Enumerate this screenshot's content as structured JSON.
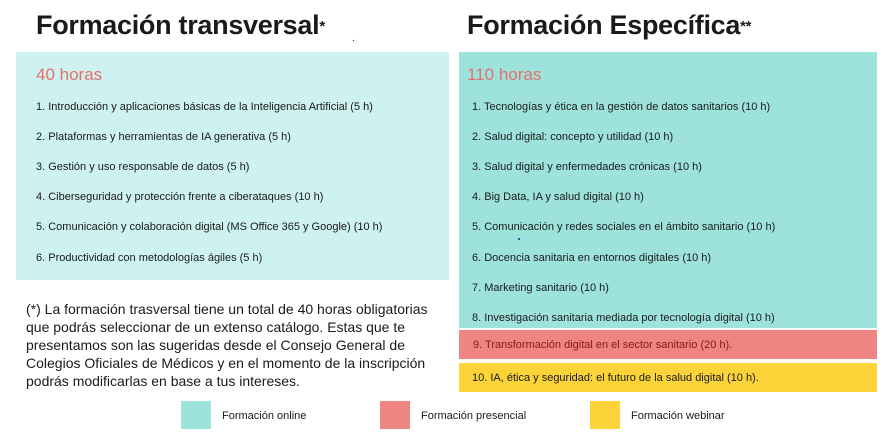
{
  "left": {
    "title": "Formación transversal",
    "title_mark": "*",
    "hours": "40 horas",
    "items": [
      "1. Introducción y aplicaciones básicas de la Inteligencia Artificial (5 h)",
      "2. Plataformas y herramientas de IA generativa (5 h)",
      "3. Gestión y uso responsable de datos (5 h)",
      "4. Ciberseguridad y protección frente a ciberataques (10 h)",
      "5. Comunicación y colaboración digital (MS Office 365 y Google) (10 h)",
      "6. Productividad con metodologías ágiles (5 h)"
    ],
    "note": "(*) La formación trasversal tiene un total de 40 horas obligatorias que podrás seleccionar de un extenso catálogo. Estas que te presentamos son las sugeridas desde el Consejo General de Colegios Oficiales de Médicos y en el momento de la inscripción podrás modificarlas en base a tus intereses."
  },
  "right": {
    "title": "Formación Específica",
    "title_mark": "**",
    "hours": "110 horas",
    "items": [
      "1.   Tecnologías y ética en la gestión de datos sanitarios (10 h)",
      "2.   Salud digital: concepto y utilidad (10 h)",
      "3.   Salud digital y enfermedades crónicas (10 h)",
      "4.   Big Data, IA y salud digital (10 h)",
      "5.   Comunicación y redes sociales en el ámbito sanitario (10 h)",
      "6.   Docencia sanitaria en entornos digitales (10 h)",
      "7.   Marketing sanitario (10 h)",
      "8.   Investigación sanitaria mediada por tecnología digital (10 h)"
    ],
    "item_9": "9.   Transformación digital en el sector sanitario (20 h).",
    "item_10": "10. IA, ética y seguridad: el futuro de la salud digital (10 h)."
  },
  "legend": {
    "online": "Formación online",
    "presencial": "Formación presencial",
    "webinar": "Formación webinar"
  },
  "colors": {
    "online": "#9de3dc",
    "online_light": "#cdf2ef",
    "presencial": "#ee8582",
    "webinar": "#fcd43a",
    "hours_text": "#e6706e"
  }
}
